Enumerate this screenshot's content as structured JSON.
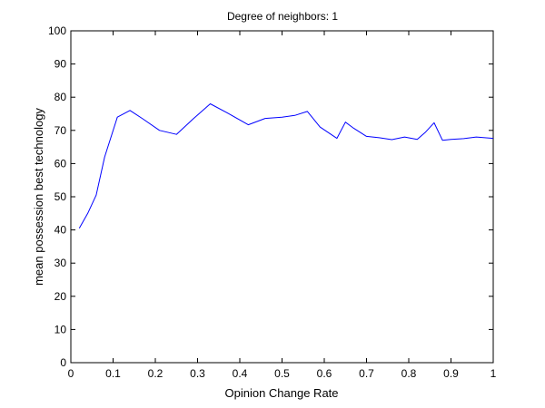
{
  "chart_data": {
    "type": "line",
    "title": "Degree of neighbors: 1",
    "xlabel": "Opinion Change Rate",
    "ylabel": "mean possession best technology",
    "xlim": [
      0,
      1
    ],
    "ylim": [
      0,
      100
    ],
    "xticks": [
      0,
      0.1,
      0.2,
      0.3,
      0.4,
      0.5,
      0.6,
      0.7,
      0.8,
      0.9,
      1
    ],
    "xtick_labels": [
      "0",
      "0.1",
      "0.2",
      "0.3",
      "0.4",
      "0.5",
      "0.6",
      "0.7",
      "0.8",
      "0.9",
      "1"
    ],
    "yticks": [
      0,
      10,
      20,
      30,
      40,
      50,
      60,
      70,
      80,
      90,
      100
    ],
    "ytick_labels": [
      "0",
      "10",
      "20",
      "30",
      "40",
      "50",
      "60",
      "70",
      "80",
      "90",
      "100"
    ],
    "grid": false,
    "series": [
      {
        "color": "#0000ff",
        "x": [
          0.02,
          0.04,
          0.06,
          0.08,
          0.11,
          0.14,
          0.17,
          0.21,
          0.25,
          0.29,
          0.33,
          0.37,
          0.42,
          0.46,
          0.5,
          0.53,
          0.56,
          0.59,
          0.63,
          0.65,
          0.67,
          0.7,
          0.73,
          0.76,
          0.79,
          0.82,
          0.84,
          0.86,
          0.88,
          0.9,
          0.93,
          0.96,
          0.98,
          1.0
        ],
        "y": [
          40.5,
          45,
          50.5,
          62,
          74,
          76,
          73.5,
          70,
          68.8,
          73.5,
          78,
          75.3,
          71.7,
          73.6,
          74,
          74.5,
          75.7,
          71,
          67.6,
          72.5,
          70.6,
          68.2,
          67.8,
          67.2,
          68,
          67.3,
          69.5,
          72.3,
          67,
          67.3,
          67.5,
          68,
          67.8,
          67.6
        ]
      }
    ]
  }
}
